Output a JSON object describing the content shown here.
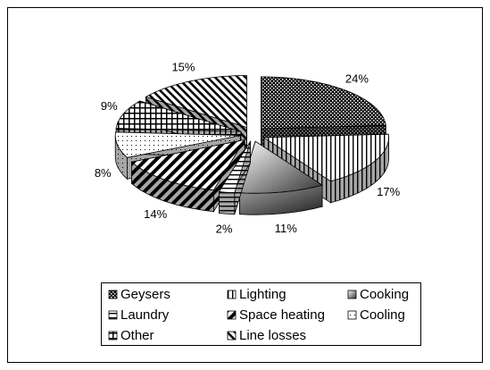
{
  "chart_data": {
    "type": "pie3d",
    "categories": [
      "Geysers",
      "Lighting",
      "Cooking",
      "Laundry",
      "Space heating",
      "Cooling",
      "Other",
      "Line losses"
    ],
    "values": [
      24,
      17,
      11,
      2,
      14,
      8,
      9,
      15
    ],
    "value_labels": [
      "24%",
      "17%",
      "11%",
      "2%",
      "14%",
      "8%",
      "9%",
      "15%"
    ],
    "legend": "bottom"
  }
}
